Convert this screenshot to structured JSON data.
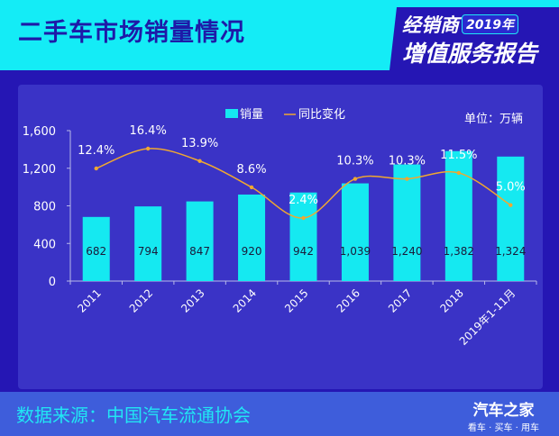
{
  "header": {
    "title": "二手车市场销量情况",
    "badge_line1": "经销商",
    "badge_year": "2019年",
    "badge_line2": "增值服务报告"
  },
  "colors": {
    "header_bg": "#14ecf6",
    "bar": "#15e9f1",
    "line": "#f0a830",
    "background": "#2516b4"
  },
  "chart_data": {
    "type": "bar",
    "title": "",
    "unit_label": "单位：万辆",
    "categories": [
      "2011",
      "2012",
      "2013",
      "2014",
      "2015",
      "2016",
      "2017",
      "2018",
      "2019年1-11月"
    ],
    "series": [
      {
        "name": "销量",
        "type": "bar",
        "values": [
          682,
          794,
          847,
          920,
          942,
          1039,
          1240,
          1382,
          1324
        ],
        "labels": [
          "682",
          "794",
          "847",
          "920",
          "942",
          "1,039",
          "1,240",
          "1,382",
          "1,324"
        ]
      },
      {
        "name": "同比变化",
        "type": "line",
        "values": [
          12.4,
          16.4,
          13.9,
          8.6,
          2.4,
          10.3,
          10.3,
          11.5,
          5.0
        ],
        "labels": [
          "12.4%",
          "16.4%",
          "13.9%",
          "8.6%",
          "2.4%",
          "10.3%",
          "10.3%",
          "11.5%",
          "5.0%"
        ]
      }
    ],
    "yticks": [
      "0",
      "400",
      "800",
      "1,200",
      "1,600"
    ],
    "ylim": [
      0,
      1600
    ],
    "legend_position": "top-center",
    "grid": false
  },
  "footer": {
    "source": "数据来源：中国汽车流通协会",
    "brand": "汽车之家",
    "brand_slogan": "看车 · 买车 · 用车"
  }
}
